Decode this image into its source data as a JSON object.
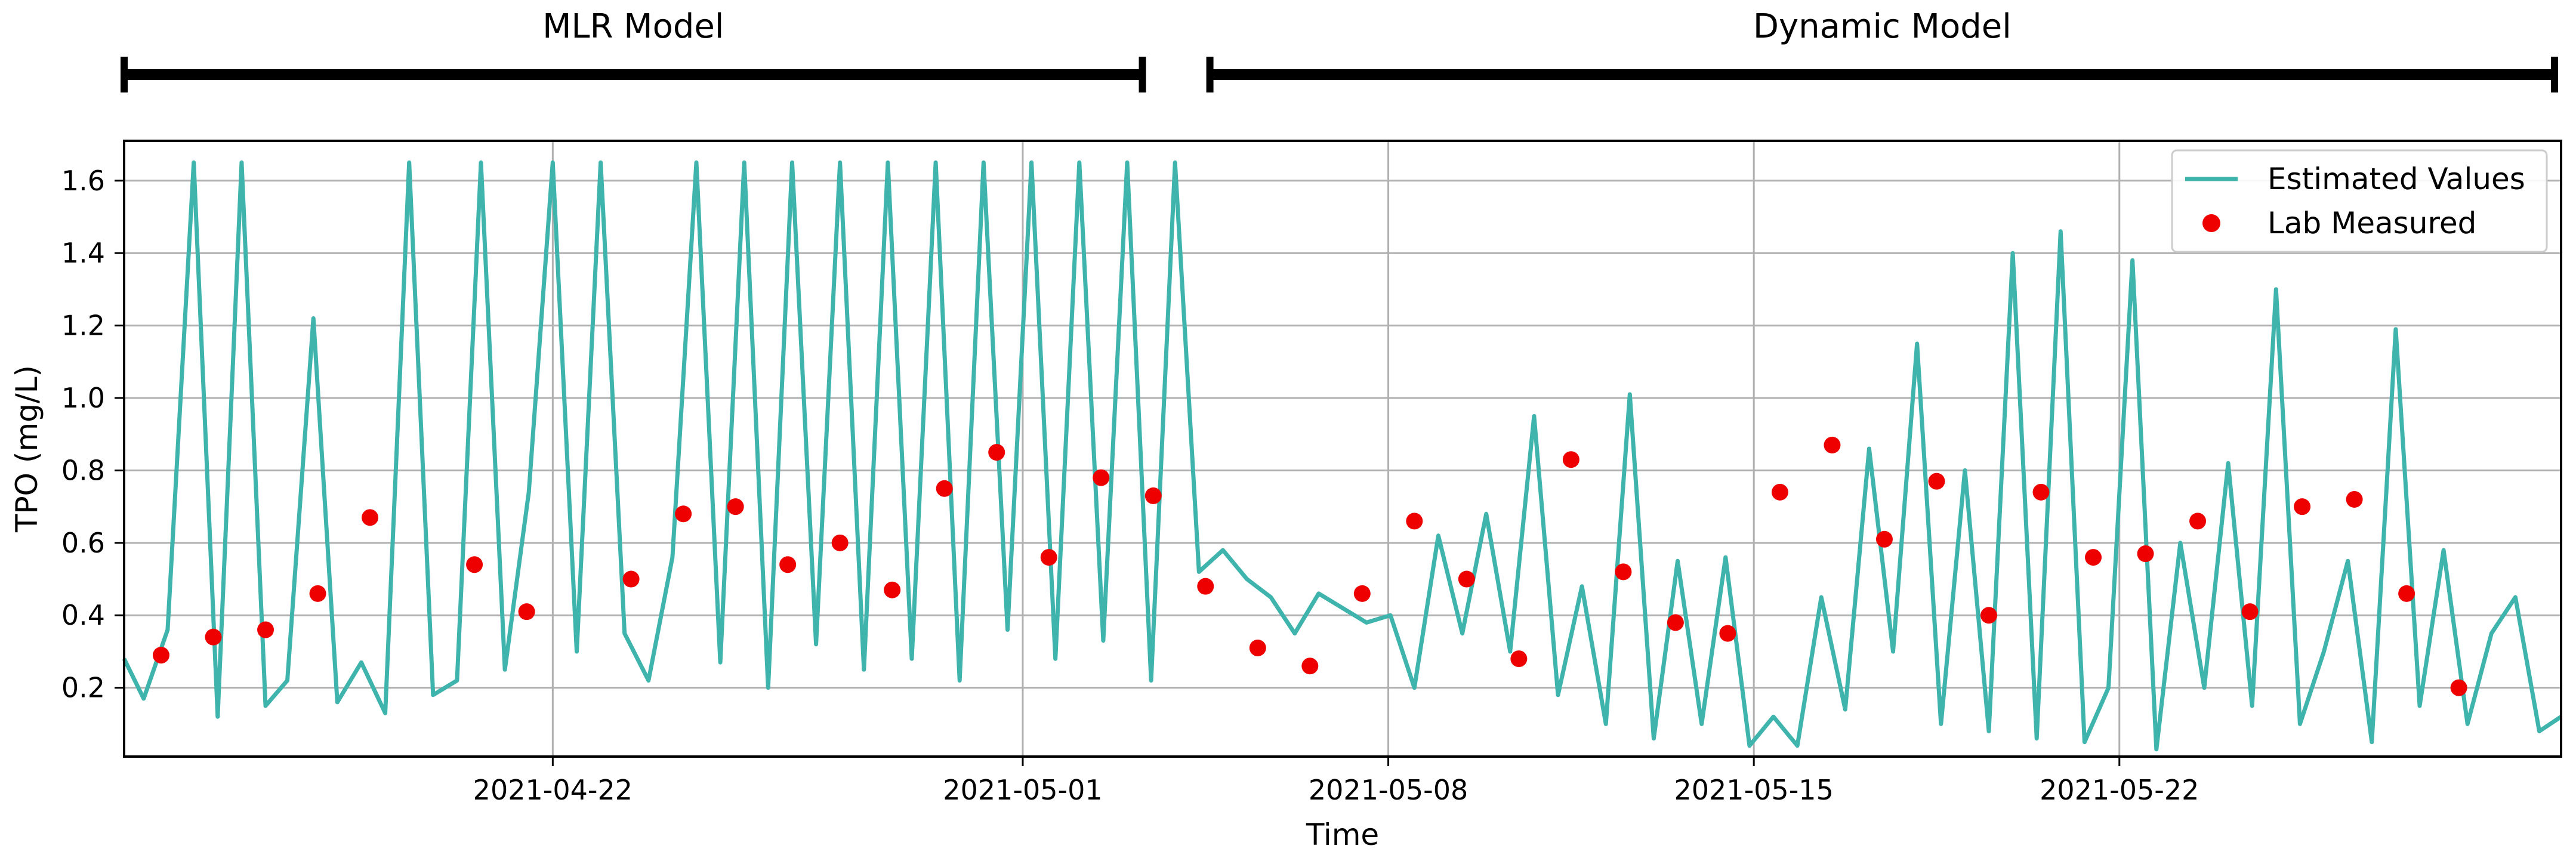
{
  "colors": {
    "line": "#3fb4ac",
    "marker": "#ee0000",
    "grid": "#b0b0b0",
    "axis": "#000000"
  },
  "chart_data": {
    "type": "line",
    "xlabel": "Time",
    "ylabel": "TPO (mg/L)",
    "xlim": [
      "2021-04-13T19:00",
      "2021-05-30T11:00"
    ],
    "ylim": [
      0.01,
      1.71
    ],
    "yticks": [
      0.2,
      0.4,
      0.6,
      0.8,
      1.0,
      1.2,
      1.4,
      1.6
    ],
    "ytick_labels": [
      "0.2",
      "0.4",
      "0.6",
      "0.8",
      "1.0",
      "1.2",
      "1.4",
      "1.6"
    ],
    "xticks": [
      "2021-04-22",
      "2021-05-01",
      "2021-05-08",
      "2021-05-15",
      "2021-05-22"
    ],
    "grid": true,
    "legend": {
      "position": "top-right",
      "entries": [
        "Estimated Values",
        "Lab Measured"
      ]
    },
    "model_periods": [
      {
        "label": "MLR Model",
        "start": "2021-04-13T19:00",
        "end": "2021-05-03T07:00"
      },
      {
        "label": "Dynamic Model",
        "start": "2021-05-04T14:00",
        "end": "2021-05-30T08:00"
      }
    ],
    "series": [
      {
        "name": "Estimated Values",
        "kind": "line",
        "x": [
          "2021-04-13T19:00",
          "2021-04-14T04:00",
          "2021-04-14T15:00",
          "2021-04-15T03:00",
          "2021-04-15T14:00",
          "2021-04-16T01:00",
          "2021-04-16T12:00",
          "2021-04-16T22:00",
          "2021-04-17T10:00",
          "2021-04-17T21:00",
          "2021-04-18T08:00",
          "2021-04-18T19:00",
          "2021-04-19T06:00",
          "2021-04-19T17:00",
          "2021-04-20T04:00",
          "2021-04-20T15:00",
          "2021-04-21T02:00",
          "2021-04-21T13:00",
          "2021-04-22T00:00",
          "2021-04-22T11:00",
          "2021-04-22T22:00",
          "2021-04-23T09:00",
          "2021-04-23T20:00",
          "2021-04-24T07:00",
          "2021-04-24T18:00",
          "2021-04-25T05:00",
          "2021-04-25T16:00",
          "2021-04-26T03:00",
          "2021-04-26T14:00",
          "2021-04-27T01:00",
          "2021-04-27T12:00",
          "2021-04-27T23:00",
          "2021-04-28T10:00",
          "2021-04-28T21:00",
          "2021-04-29T08:00",
          "2021-04-29T19:00",
          "2021-04-30T06:00",
          "2021-04-30T17:00",
          "2021-05-01T04:00",
          "2021-05-01T15:00",
          "2021-05-02T02:00",
          "2021-05-02T13:00",
          "2021-05-03T00:00",
          "2021-05-03T11:00",
          "2021-05-03T22:00",
          "2021-05-04T09:00",
          "2021-05-04T20:00",
          "2021-05-05T07:00",
          "2021-05-05T18:00",
          "2021-05-06T05:00",
          "2021-05-06T16:00",
          "2021-05-07T03:00",
          "2021-05-07T14:00",
          "2021-05-08T01:00",
          "2021-05-08T12:00",
          "2021-05-08T23:00",
          "2021-05-09T10:00",
          "2021-05-09T21:00",
          "2021-05-10T08:00",
          "2021-05-10T19:00",
          "2021-05-11T06:00",
          "2021-05-11T17:00",
          "2021-05-12T04:00",
          "2021-05-12T15:00",
          "2021-05-13T02:00",
          "2021-05-13T13:00",
          "2021-05-14T00:00",
          "2021-05-14T11:00",
          "2021-05-14T22:00",
          "2021-05-15T09:00",
          "2021-05-15T20:00",
          "2021-05-16T07:00",
          "2021-05-16T18:00",
          "2021-05-17T05:00",
          "2021-05-17T16:00",
          "2021-05-18T03:00",
          "2021-05-18T14:00",
          "2021-05-19T01:00",
          "2021-05-19T12:00",
          "2021-05-19T23:00",
          "2021-05-20T10:00",
          "2021-05-20T21:00",
          "2021-05-21T08:00",
          "2021-05-21T19:00",
          "2021-05-22T06:00",
          "2021-05-22T17:00",
          "2021-05-23T04:00",
          "2021-05-23T15:00",
          "2021-05-24T02:00",
          "2021-05-24T13:00",
          "2021-05-25T00:00",
          "2021-05-25T11:00",
          "2021-05-25T22:00",
          "2021-05-26T09:00",
          "2021-05-26T20:00",
          "2021-05-27T07:00",
          "2021-05-27T18:00",
          "2021-05-28T05:00",
          "2021-05-28T16:00",
          "2021-05-29T03:00",
          "2021-05-29T14:00",
          "2021-05-30T01:00",
          "2021-05-30T11:00"
        ],
        "y": [
          0.28,
          0.17,
          0.36,
          1.65,
          0.12,
          1.65,
          0.15,
          0.22,
          1.22,
          0.16,
          0.27,
          0.13,
          1.65,
          0.18,
          0.22,
          1.65,
          0.25,
          0.74,
          1.65,
          0.3,
          1.65,
          0.35,
          0.22,
          0.56,
          1.65,
          0.27,
          1.65,
          0.2,
          1.65,
          0.32,
          1.65,
          0.25,
          1.65,
          0.28,
          1.65,
          0.22,
          1.65,
          0.36,
          1.65,
          0.28,
          1.65,
          0.33,
          1.65,
          0.22,
          1.65,
          0.52,
          0.58,
          0.5,
          0.45,
          0.35,
          0.46,
          0.42,
          0.38,
          0.4,
          0.2,
          0.62,
          0.35,
          0.68,
          0.3,
          0.95,
          0.18,
          0.48,
          0.1,
          1.01,
          0.06,
          0.55,
          0.1,
          0.56,
          0.04,
          0.12,
          0.04,
          0.45,
          0.14,
          0.86,
          0.3,
          1.15,
          0.1,
          0.8,
          0.08,
          1.4,
          0.06,
          1.46,
          0.05,
          0.2,
          1.38,
          0.03,
          0.6,
          0.2,
          0.82,
          0.15,
          1.3,
          0.1,
          0.3,
          0.55,
          0.05,
          1.19,
          0.15,
          0.58,
          0.1,
          0.35,
          0.45,
          0.08,
          0.12
        ]
      },
      {
        "name": "Lab Measured",
        "kind": "scatter",
        "x": [
          "2021-04-14T12:00",
          "2021-04-15T12:00",
          "2021-04-16T12:00",
          "2021-04-17T12:00",
          "2021-04-18T12:00",
          "2021-04-20T12:00",
          "2021-04-21T12:00",
          "2021-04-23T12:00",
          "2021-04-24T12:00",
          "2021-04-25T12:00",
          "2021-04-26T12:00",
          "2021-04-27T12:00",
          "2021-04-28T12:00",
          "2021-04-29T12:00",
          "2021-04-30T12:00",
          "2021-05-01T12:00",
          "2021-05-02T12:00",
          "2021-05-03T12:00",
          "2021-05-04T12:00",
          "2021-05-05T12:00",
          "2021-05-06T12:00",
          "2021-05-07T12:00",
          "2021-05-08T12:00",
          "2021-05-09T12:00",
          "2021-05-10T12:00",
          "2021-05-11T12:00",
          "2021-05-12T12:00",
          "2021-05-13T12:00",
          "2021-05-14T12:00",
          "2021-05-15T12:00",
          "2021-05-16T12:00",
          "2021-05-17T12:00",
          "2021-05-18T12:00",
          "2021-05-19T12:00",
          "2021-05-20T12:00",
          "2021-05-21T12:00",
          "2021-05-22T12:00",
          "2021-05-23T12:00",
          "2021-05-24T12:00",
          "2021-05-25T12:00",
          "2021-05-26T12:00",
          "2021-05-27T12:00",
          "2021-05-28T12:00"
        ],
        "y": [
          0.29,
          0.34,
          0.36,
          0.46,
          0.67,
          0.54,
          0.41,
          0.5,
          0.68,
          0.7,
          0.54,
          0.6,
          0.47,
          0.75,
          0.85,
          0.56,
          0.78,
          0.73,
          0.48,
          0.31,
          0.26,
          0.46,
          0.66,
          0.5,
          0.28,
          0.83,
          0.52,
          0.38,
          0.35,
          0.74,
          0.87,
          0.61,
          0.77,
          0.4,
          0.74,
          0.56,
          0.57,
          0.66,
          0.41,
          0.7,
          0.72,
          0.46,
          0.2
        ]
      }
    ]
  }
}
